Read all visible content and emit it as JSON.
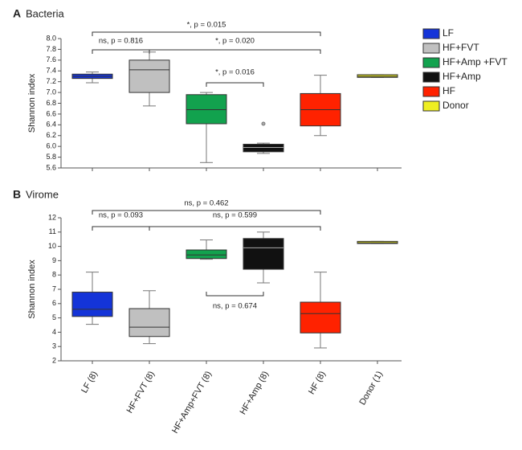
{
  "chart_data": [
    {
      "type": "box",
      "panel": "A",
      "title": "Bacteria",
      "ylabel": "Shannon index",
      "ylim": [
        5.6,
        8.0
      ],
      "yticks": [
        5.6,
        5.8,
        {
          "value": 6.0,
          "label": "6.0"
        },
        6.2,
        6.4,
        6.6,
        6.8,
        {
          "value": 7.0,
          "label": "7.0"
        },
        7.2,
        7.4,
        7.6,
        7.8,
        {
          "value": 8.0,
          "label": "8.0"
        }
      ],
      "series": [
        {
          "name": "LF",
          "color": "#1434d8",
          "whislo": 7.18,
          "q1": 7.26,
          "med": 7.3,
          "q3": 7.34,
          "whishi": 7.38,
          "fliers": []
        },
        {
          "name": "HF+FVT",
          "color": "#c0c0c0",
          "whislo": 6.75,
          "q1": 7.0,
          "med": 7.42,
          "q3": 7.6,
          "whishi": 7.75,
          "fliers": []
        },
        {
          "name": "HF+Amp +FVT",
          "color": "#12a24e",
          "whislo": 5.7,
          "q1": 6.42,
          "med": 6.68,
          "q3": 6.96,
          "whishi": 7.0,
          "fliers": []
        },
        {
          "name": "HF+Amp",
          "color": "#111111",
          "whislo": 5.87,
          "q1": 5.9,
          "med": 5.98,
          "q3": 6.04,
          "whishi": 6.06,
          "fliers": [
            6.42
          ]
        },
        {
          "name": "HF",
          "color": "#ff2200",
          "whislo": 6.2,
          "q1": 6.38,
          "med": 6.68,
          "q3": 6.98,
          "whishi": 7.32,
          "fliers": []
        },
        {
          "name": "Donor",
          "color": "#eeee22",
          "whislo": 7.28,
          "q1": 7.28,
          "med": 7.3,
          "q3": 7.33,
          "whishi": 7.33,
          "fliers": []
        }
      ],
      "annotations": [
        "*, p = 0.015",
        "ns, p = 0.816",
        "*, p = 0.020",
        "*, p = 0.016"
      ]
    },
    {
      "type": "box",
      "panel": "B",
      "title": "Virome",
      "ylabel": "Shannon index",
      "ylim": [
        2,
        12
      ],
      "yticks": [
        2,
        3,
        4,
        5,
        6,
        7,
        8,
        9,
        10,
        11,
        12
      ],
      "categories": [
        "LF (8)",
        "HF+FVT (8)",
        "HF+Amp+FVT (8)",
        "HF+Amp (8)",
        "HF (8)",
        "Donor (1)"
      ],
      "series": [
        {
          "color": "#1434d8",
          "whislo": 4.55,
          "q1": 5.1,
          "med": 5.6,
          "q3": 6.8,
          "whishi": 8.2,
          "fliers": []
        },
        {
          "color": "#c0c0c0",
          "whislo": 3.2,
          "q1": 3.7,
          "med": 4.35,
          "q3": 5.65,
          "whishi": 6.9,
          "fliers": []
        },
        {
          "color": "#12a24e",
          "whislo": 9.1,
          "q1": 9.15,
          "med": 9.4,
          "q3": 9.75,
          "whishi": 10.45,
          "fliers": []
        },
        {
          "color": "#111111",
          "whislo": 7.45,
          "q1": 8.4,
          "med": 9.9,
          "q3": 10.55,
          "whishi": 11.0,
          "fliers": []
        },
        {
          "color": "#ff2200",
          "whislo": 2.9,
          "q1": 3.95,
          "med": 5.3,
          "q3": 6.1,
          "whishi": 8.2,
          "fliers": []
        },
        {
          "color": "#eeee22",
          "whislo": 10.2,
          "q1": 10.2,
          "med": 10.25,
          "q3": 10.35,
          "whishi": 10.35,
          "fliers": []
        }
      ],
      "annotations": [
        "ns, p = 0.462",
        "ns, p = 0.093",
        "ns, p = 0.599",
        "ns, p = 0.674"
      ]
    }
  ]
}
